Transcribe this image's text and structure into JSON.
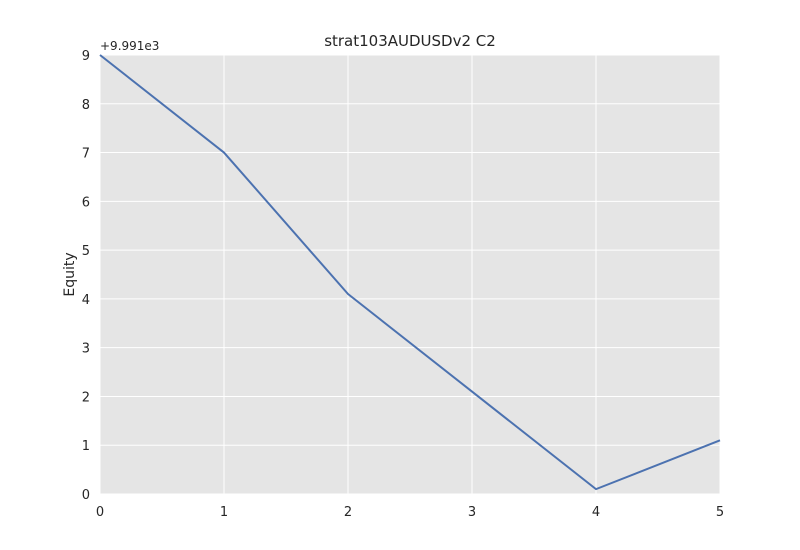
{
  "chart_data": {
    "type": "line",
    "title": "strat103AUDUSDv2 C2",
    "xlabel": "",
    "ylabel": "Equity",
    "y_offset_label": "+9.991e3",
    "x": [
      0,
      1,
      2,
      3,
      4,
      5
    ],
    "series": [
      {
        "values": [
          9.0,
          7.0,
          4.1,
          2.1,
          0.1,
          1.1
        ]
      }
    ],
    "xlim": [
      0,
      5
    ],
    "ylim": [
      0,
      9
    ],
    "xticks": [
      "0",
      "1",
      "2",
      "3",
      "4",
      "5"
    ],
    "yticks": [
      "0",
      "1",
      "2",
      "3",
      "4",
      "5",
      "6",
      "7",
      "8",
      "9"
    ],
    "grid": true,
    "colors": {
      "plot_background": "#e5e5e5",
      "grid": "#ffffff",
      "line": "#4c72b0"
    }
  }
}
